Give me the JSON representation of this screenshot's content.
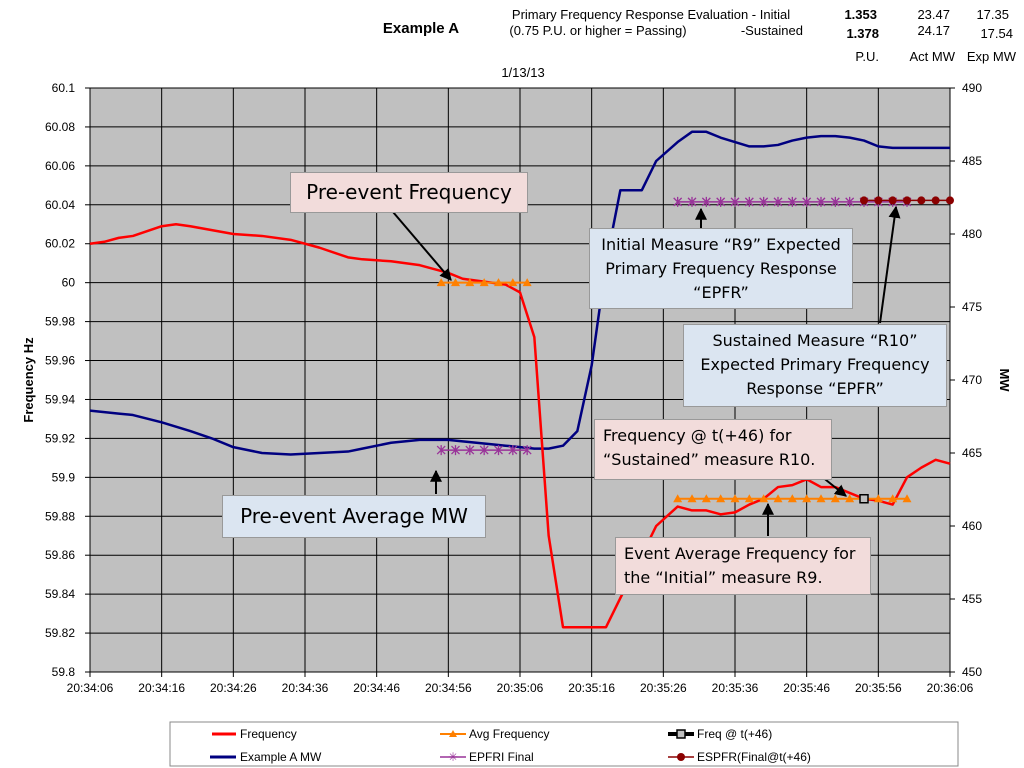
{
  "header": {
    "example_title": "Example A",
    "eval_line1": "Primary Frequency Response Evaluation - Initial",
    "eval_line2": "(0.75 P.U. or higher = Passing)",
    "sustained_label": "-Sustained",
    "pu_initial": "1.353",
    "pu_sustained": "1.378",
    "act_mw_initial": "23.47",
    "act_mw_sustained": "24.17",
    "exp_mw_initial": "17.35",
    "exp_mw_sustained": "17.54",
    "col_pu": "P.U.",
    "col_act_mw": "Act MW",
    "col_exp_mw": "Exp MW",
    "date": "1/13/13"
  },
  "callouts": {
    "pre_event_frequency": "Pre-event Frequency",
    "initial_measure": "Initial Measure “R9” Expected Primary Frequency Response “EPFR”",
    "sustained_measure": "Sustained Measure “R10” Expected Primary Frequency Response “EPFR”",
    "freq_t46": "Frequency @ t(+46) for “Sustained” measure R10.",
    "pre_event_mw": "Pre-event Average MW",
    "event_avg_freq": "Event Average Frequency for the “Initial” measure R9."
  },
  "legend": {
    "frequency": "Frequency",
    "avg_frequency": "Avg Frequency",
    "freq_t46": "Freq @ t(+46)",
    "example_mw": "Example A MW",
    "epfri": "EPFRI Final",
    "espfr": "ESPFR(Final@t(+46)"
  },
  "chart_data": {
    "type": "line",
    "xlabel": "",
    "ylabel_left": "Frequency Hz",
    "ylabel_right": "MW",
    "x_ticks": [
      "20:34:06",
      "20:34:16",
      "20:34:26",
      "20:34:36",
      "20:34:46",
      "20:34:56",
      "20:35:06",
      "20:35:16",
      "20:35:26",
      "20:35:36",
      "20:35:46",
      "20:35:56",
      "20:36:06"
    ],
    "x_range_seconds": [
      0,
      120
    ],
    "y_left_range": [
      59.8,
      60.1
    ],
    "y_left_ticks": [
      "59.8",
      "59.82",
      "59.84",
      "59.86",
      "59.88",
      "59.9",
      "59.92",
      "59.94",
      "59.96",
      "59.98",
      "60",
      "60.02",
      "60.04",
      "60.06",
      "60.08",
      "60.1"
    ],
    "y_right_range": [
      450,
      490
    ],
    "y_right_ticks": [
      "450",
      "455",
      "460",
      "465",
      "470",
      "475",
      "480",
      "485",
      "490"
    ],
    "grid": true,
    "legend_position": "bottom",
    "colors": {
      "frequency": "#ff0000",
      "avg_frequency": "#ff8000",
      "freq_t46": "#000000",
      "mw": "#000080",
      "epfri": "#993399",
      "espfr": "#8b0000",
      "plot_bg": "#c0c0c0"
    },
    "series": [
      {
        "name": "Frequency",
        "axis": "left",
        "x": [
          0,
          2,
          4,
          6,
          10,
          12,
          14,
          17,
          20,
          24,
          28,
          32,
          36,
          38,
          42,
          46,
          50,
          52,
          56,
          58,
          60,
          62,
          64,
          66,
          68,
          70,
          72,
          74,
          77,
          79,
          82,
          84,
          86,
          88,
          90,
          92,
          94,
          96,
          98,
          100,
          102,
          104,
          106,
          108,
          110,
          112,
          114,
          116,
          118,
          120
        ],
        "y": [
          60.02,
          60.021,
          60.023,
          60.024,
          60.029,
          60.03,
          60.029,
          60.027,
          60.025,
          60.024,
          60.022,
          60.018,
          60.013,
          60.012,
          60.011,
          60.009,
          60.005,
          60.002,
          60.0,
          59.999,
          59.995,
          59.972,
          59.87,
          59.823,
          59.823,
          59.823,
          59.823,
          59.838,
          59.86,
          59.875,
          59.885,
          59.883,
          59.883,
          59.881,
          59.882,
          59.886,
          59.889,
          59.895,
          59.896,
          59.899,
          59.895,
          59.895,
          59.892,
          59.889,
          59.888,
          59.886,
          59.9,
          59.905,
          59.909,
          59.907
        ]
      },
      {
        "name": "Example A MW",
        "axis": "right",
        "x": [
          0,
          2,
          4,
          6,
          10,
          12,
          14,
          17,
          20,
          24,
          28,
          32,
          36,
          38,
          42,
          46,
          50,
          52,
          56,
          58,
          60,
          62,
          64,
          66,
          68,
          70,
          72,
          74,
          77,
          79,
          82,
          84,
          86,
          88,
          90,
          92,
          94,
          96,
          98,
          100,
          102,
          104,
          106,
          108,
          110,
          112,
          114,
          116,
          118,
          120
        ],
        "y": [
          467.9,
          467.8,
          467.7,
          467.6,
          467.1,
          466.8,
          466.5,
          466.0,
          465.4,
          465.0,
          464.9,
          465.0,
          465.1,
          465.3,
          465.7,
          465.9,
          465.9,
          465.8,
          465.6,
          465.5,
          465.4,
          465.3,
          465.3,
          465.5,
          466.5,
          471.0,
          478.0,
          483.0,
          483.0,
          485.0,
          486.3,
          487.0,
          487.0,
          486.6,
          486.3,
          486.0,
          486.0,
          486.1,
          486.4,
          486.6,
          486.7,
          486.7,
          486.6,
          486.4,
          486.0,
          485.9,
          485.9,
          485.9,
          485.9,
          485.9
        ]
      },
      {
        "name": "Avg Frequency",
        "axis": "left",
        "segments": [
          {
            "x_start": 49,
            "x_end": 61,
            "y": 60.0
          },
          {
            "x_start": 82,
            "x_end": 114,
            "y": 59.889
          }
        ]
      },
      {
        "name": "EPFRI Final",
        "axis": "right",
        "segments": [
          {
            "x_start": 49,
            "x_end": 61,
            "y": 465.2
          },
          {
            "x_start": 82,
            "x_end": 114,
            "y": 482.2
          }
        ]
      },
      {
        "name": "ESPFR(Final@t(+46)",
        "axis": "right",
        "segments": [
          {
            "x_start": 108,
            "x_end": 120,
            "y": 482.3
          }
        ]
      },
      {
        "name": "Freq @ t(+46)",
        "axis": "left",
        "points": [
          {
            "x": 108,
            "y": 59.889
          }
        ]
      }
    ]
  }
}
